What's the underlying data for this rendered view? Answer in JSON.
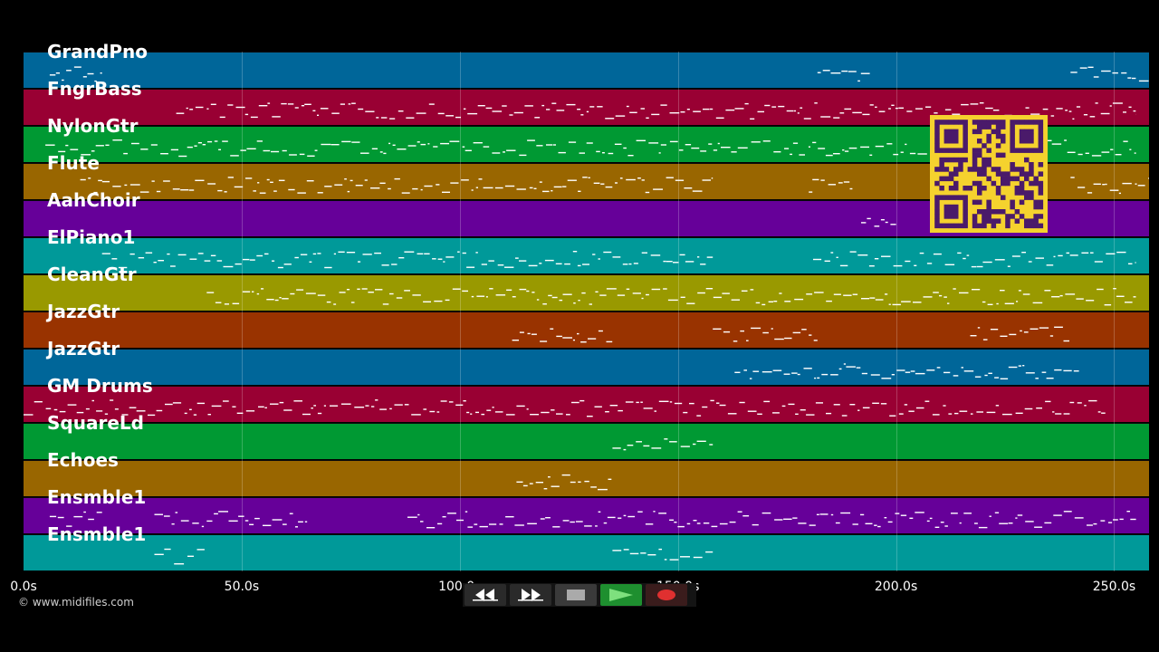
{
  "tracks": [
    {
      "label": "GrandPno",
      "color": "#006699"
    },
    {
      "label": "FngrBass",
      "color": "#990033"
    },
    {
      "label": "NylonGtr",
      "color": "#009933"
    },
    {
      "label": "Flute",
      "color": "#996600"
    },
    {
      "label": "AahChoir",
      "color": "#660099"
    },
    {
      "label": "ElPiano1",
      "color": "#009999"
    },
    {
      "label": "CleanGtr",
      "color": "#999900"
    },
    {
      "label": "JazzGtr",
      "color": "#993300"
    },
    {
      "label": "JazzGtr",
      "color": "#006699"
    },
    {
      "label": "GM Drums",
      "color": "#990033"
    },
    {
      "label": "SquareLd",
      "color": "#009933"
    },
    {
      "label": "Echoes",
      "color": "#996600"
    },
    {
      "label": "Ensmble1",
      "color": "#660099"
    },
    {
      "label": "Ensmble1",
      "color": "#009999"
    }
  ],
  "timeline": {
    "max_seconds": 258,
    "ticks": [
      {
        "seconds": 0,
        "label": "0.0s"
      },
      {
        "seconds": 50,
        "label": "50.0s"
      },
      {
        "seconds": 100,
        "label": "100.0s"
      },
      {
        "seconds": 150,
        "label": "150.0s"
      },
      {
        "seconds": 200,
        "label": "200.0s"
      },
      {
        "seconds": 250,
        "label": "250.0s"
      }
    ]
  },
  "credit": "© www.midifiles.com",
  "transport": {
    "rewind_icon": "rewind-icon",
    "fast_forward_icon": "fast-forward-icon",
    "stop_icon": "stop-icon",
    "play_icon": "play-icon",
    "record_icon": "record-icon"
  },
  "qr_code": {
    "color": "#f5d22e",
    "module_color": "#4a1a6a"
  },
  "note_color": "#ffffff"
}
